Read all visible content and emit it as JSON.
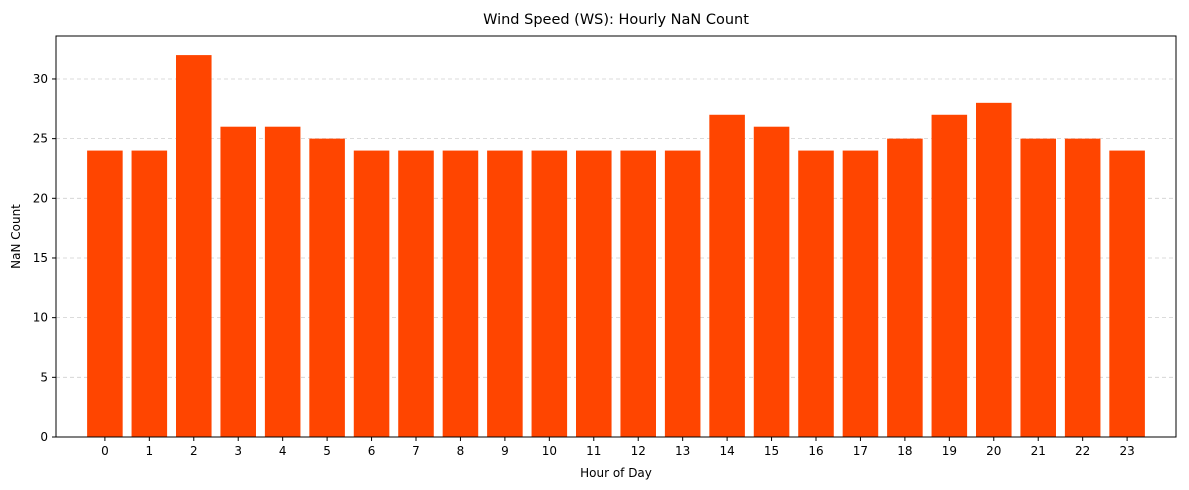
{
  "chart_data": {
    "type": "bar",
    "title": "Wind Speed (WS): Hourly NaN Count",
    "xlabel": "Hour of Day",
    "ylabel": "NaN Count",
    "categories": [
      "0",
      "1",
      "2",
      "3",
      "4",
      "5",
      "6",
      "7",
      "8",
      "9",
      "10",
      "11",
      "12",
      "13",
      "14",
      "15",
      "16",
      "17",
      "18",
      "19",
      "20",
      "21",
      "22",
      "23"
    ],
    "values": [
      24,
      24,
      32,
      26,
      26,
      25,
      24,
      24,
      24,
      24,
      24,
      24,
      24,
      24,
      27,
      26,
      24,
      24,
      25,
      27,
      28,
      25,
      25,
      24
    ],
    "yticks": [
      0,
      5,
      10,
      15,
      20,
      25,
      30
    ],
    "ylim": [
      0,
      33.6
    ],
    "grid": "y-dashed",
    "bar_color": "#ff4500"
  }
}
